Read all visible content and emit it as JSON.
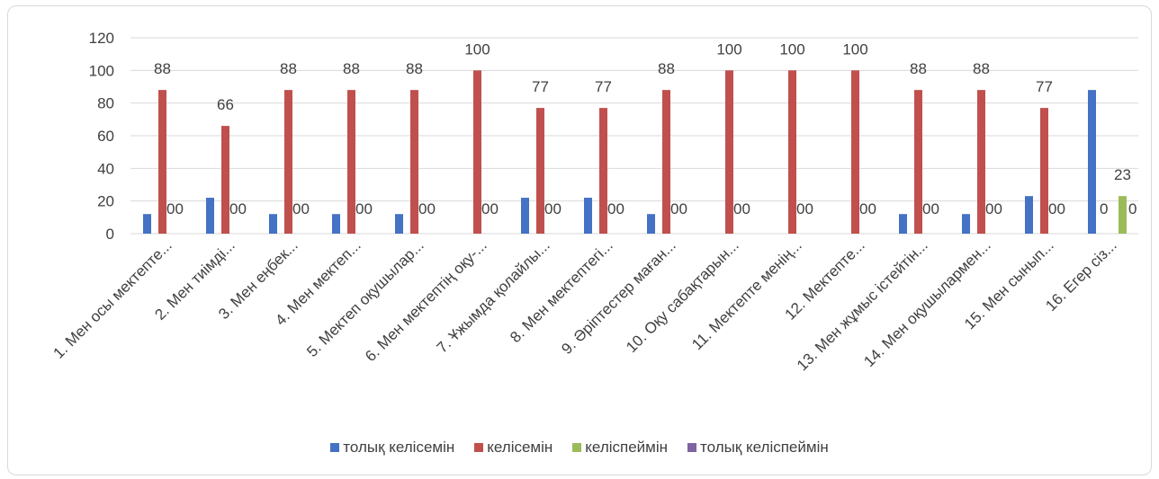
{
  "chart_data": {
    "type": "bar",
    "ylim": [
      0,
      120
    ],
    "yticks": [
      "0",
      "20",
      "40",
      "60",
      "80",
      "100",
      "120"
    ],
    "grid": true,
    "legend_position": "bottom",
    "categories": [
      "1. Мен осы мектепте...",
      "2. Мен тиімді...",
      "3. Мен еңбек...",
      "4. Мен мектеп...",
      "5. Мектеп оқушылар...",
      "6. Мен мектептің оқу-...",
      "7. Ұжымда қолайлы...",
      "8. Мен мектептегі...",
      "9. Әріптестер маған...",
      "10. Оқу сабақтарын...",
      "11. Мектепте менің...",
      "12. Мектепте...",
      "13. Мен жұмыс істейтін...",
      "14. Мен оқушылармен...",
      "15. Мен сынып...",
      "16. Егер сіз..."
    ],
    "series": [
      {
        "name": "толық келісемін",
        "color": "#4472c4",
        "values": [
          12,
          22,
          12,
          12,
          12,
          0,
          22,
          22,
          12,
          0,
          0,
          0,
          12,
          12,
          23,
          88
        ]
      },
      {
        "name": "келісемін",
        "color": "#c0504d",
        "values": [
          88,
          66,
          88,
          88,
          88,
          100,
          77,
          77,
          88,
          100,
          100,
          100,
          88,
          88,
          77,
          0
        ]
      },
      {
        "name": "келіспеймін",
        "color": "#9bbb59",
        "values": [
          0,
          0,
          0,
          0,
          0,
          0,
          0,
          0,
          0,
          0,
          0,
          0,
          0,
          0,
          0,
          23
        ]
      },
      {
        "name": "толық келіспеймін",
        "color": "#8064a2",
        "values": [
          0,
          0,
          0,
          0,
          0,
          0,
          0,
          0,
          0,
          0,
          0,
          0,
          0,
          0,
          0,
          0
        ]
      }
    ],
    "data_labels": [
      [
        "88",
        "00"
      ],
      [
        "66",
        "00"
      ],
      [
        "88",
        "00"
      ],
      [
        "88",
        "00"
      ],
      [
        "88",
        "00"
      ],
      [
        "100",
        "00"
      ],
      [
        "77",
        "00"
      ],
      [
        "77",
        "00"
      ],
      [
        "88",
        "00"
      ],
      [
        "100",
        "00"
      ],
      [
        "100",
        "00"
      ],
      [
        "100",
        "00"
      ],
      [
        "88",
        "00"
      ],
      [
        "88",
        "00"
      ],
      [
        "77",
        "00"
      ],
      [
        "23",
        "0",
        "0"
      ]
    ]
  }
}
